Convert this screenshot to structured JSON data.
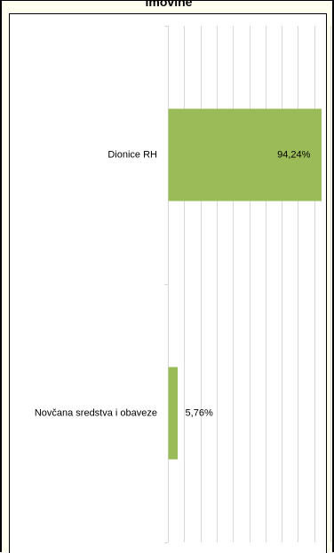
{
  "chart_data": {
    "type": "bar",
    "orientation": "horizontal",
    "title": "imovine",
    "categories": [
      "Dionice RH",
      "Novčana sredstva i obaveze"
    ],
    "values": [
      94.24,
      5.76
    ],
    "data_labels": [
      "94,24%",
      "5,76%"
    ],
    "xlim": [
      0,
      100
    ],
    "grid": true,
    "bar_color": "#9bbb59"
  }
}
